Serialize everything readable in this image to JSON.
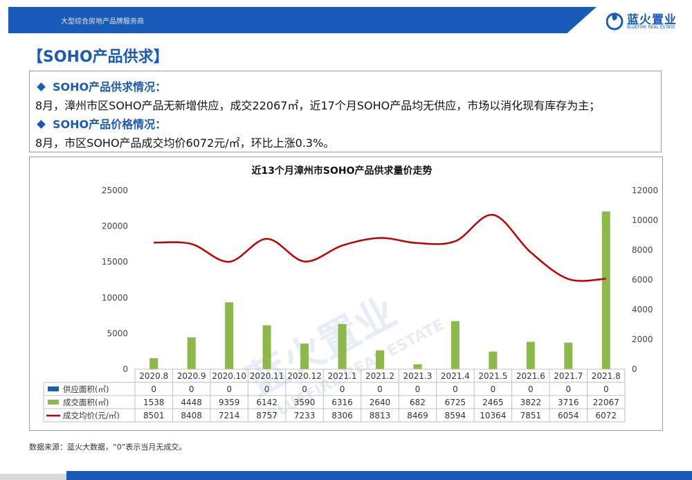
{
  "header": {
    "tagline": "大型综合房地产品牌服务商",
    "logo_name": "蓝火置业",
    "logo_en": "BLUEFIRE REAL ESTATE"
  },
  "section_title": "【SOHO产品供求】",
  "summary": {
    "supply_head": "SOHO产品供求情况：",
    "supply_text": "8月，漳州市区SOHO产品无新增供应，成交22067㎡，近17个月SOHO产品均无供应，市场以消化现有库存为主；",
    "price_head": "SOHO产品价格情况：",
    "price_text": "8月，市区SOHO产品成交均价6072元/㎡，环比上涨0.3%。"
  },
  "watermark": {
    "cn": "蓝火置业",
    "en": "BLUEFIRE REAL ESTATE"
  },
  "chart_data": {
    "type": "bar",
    "title": "近13个月漳州市SOHO产品供求量价走势",
    "categories": [
      "2020.8",
      "2020.9",
      "2020.10",
      "2020.11",
      "2020.12",
      "2021.1",
      "2021.2",
      "2021.3",
      "2021.4",
      "2021.5",
      "2021.6",
      "2021.7",
      "2021.8"
    ],
    "y_left": {
      "min": 0,
      "max": 25000,
      "ticks": [
        "0",
        "5000",
        "10000",
        "15000",
        "20000",
        "25000"
      ]
    },
    "y_right": {
      "min": 0,
      "max": 12000,
      "ticks": [
        "0",
        "2000",
        "4000",
        "6000",
        "8000",
        "10000",
        "12000"
      ]
    },
    "series": [
      {
        "name": "供应面积(㎡)",
        "type": "bar",
        "axis": "left",
        "color": "#1a5ab8",
        "values": [
          0,
          0,
          0,
          0,
          0,
          0,
          0,
          0,
          0,
          0,
          0,
          0,
          0
        ]
      },
      {
        "name": "成交面积(㎡)",
        "type": "bar",
        "axis": "left",
        "color": "#8db84a",
        "values": [
          1538,
          4448,
          9359,
          6142,
          3590,
          6316,
          2640,
          682,
          6725,
          2465,
          3822,
          3716,
          22067
        ]
      },
      {
        "name": "成交均价(元/㎡)",
        "type": "line",
        "axis": "right",
        "color": "#c00000",
        "values": [
          8501,
          8408,
          7214,
          8757,
          7233,
          8306,
          8813,
          8469,
          8594,
          10364,
          7851,
          6054,
          6072
        ]
      }
    ],
    "data_table": true,
    "legend": "table-rows"
  },
  "footnote": "数据来源：蓝火大数据，“0”表示当月无成交。"
}
